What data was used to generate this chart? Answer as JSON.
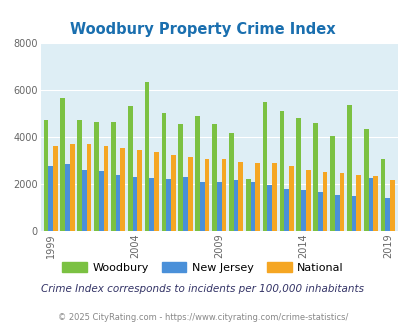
{
  "title": "Woodbury Property Crime Index",
  "subtitle": "Crime Index corresponds to incidents per 100,000 inhabitants",
  "footer": "© 2025 CityRating.com - https://www.cityrating.com/crime-statistics/",
  "years": [
    1999,
    2000,
    2001,
    2002,
    2003,
    2004,
    2005,
    2006,
    2007,
    2008,
    2009,
    2010,
    2011,
    2012,
    2013,
    2014,
    2015,
    2016,
    2017,
    2018,
    2019
  ],
  "woodbury": [
    4700,
    5650,
    4700,
    4650,
    4650,
    5300,
    6350,
    5000,
    4550,
    4900,
    4550,
    4150,
    2200,
    5500,
    5100,
    4800,
    4600,
    4050,
    5350,
    4350,
    3050
  ],
  "new_jersey": [
    2750,
    2850,
    2600,
    2550,
    2400,
    2300,
    2250,
    2200,
    2300,
    2100,
    2100,
    2150,
    2100,
    1950,
    1800,
    1750,
    1650,
    1550,
    1500,
    2250,
    1400
  ],
  "national": [
    3600,
    3700,
    3700,
    3600,
    3550,
    3450,
    3350,
    3250,
    3150,
    3050,
    3050,
    2950,
    2900,
    2900,
    2750,
    2600,
    2500,
    2450,
    2400,
    2350,
    2150
  ],
  "woodbury_color": "#7bc142",
  "nj_color": "#4a90d9",
  "national_color": "#f5a623",
  "bg_color": "#deeef5",
  "title_color": "#1a6faf",
  "subtitle_color": "#333366",
  "footer_color": "#888888",
  "ylim": [
    0,
    8000
  ],
  "yticks": [
    0,
    2000,
    4000,
    6000,
    8000
  ],
  "xtick_years": [
    1999,
    2004,
    2009,
    2014,
    2019
  ]
}
